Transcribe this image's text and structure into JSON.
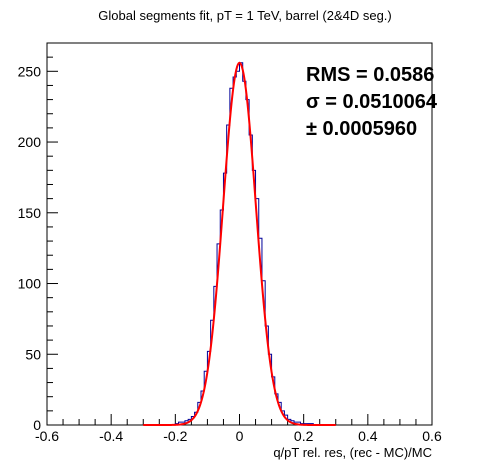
{
  "chart_data": {
    "type": "histogram",
    "title": "Global segments fit, pT = 1 TeV, barrel (2&4D seg.)",
    "xlabel": "q/pT rel. res, (rec - MC)/MC",
    "ylabel": "",
    "xlim": [
      -0.6,
      0.6
    ],
    "ylim": [
      0,
      270
    ],
    "x_ticks": [
      -0.6,
      -0.4,
      -0.2,
      0,
      0.2,
      0.4,
      0.6
    ],
    "x_tick_labels": [
      "-0.6",
      "-0.4",
      "-0.2",
      "0",
      "0.2",
      "0.4",
      "0.6"
    ],
    "y_ticks": [
      0,
      50,
      100,
      150,
      200,
      250
    ],
    "y_tick_labels": [
      "0",
      "50",
      "100",
      "150",
      "200",
      "250"
    ],
    "grid": false,
    "legend": "none",
    "histogram": {
      "name": "",
      "color": "#000099",
      "bin_edges": [
        -0.2,
        -0.19,
        -0.18,
        -0.17,
        -0.16,
        -0.15,
        -0.14,
        -0.13,
        -0.12,
        -0.11,
        -0.1,
        -0.09,
        -0.08,
        -0.07,
        -0.06,
        -0.05,
        -0.04,
        -0.03,
        -0.02,
        -0.01,
        0.0,
        0.01,
        0.02,
        0.03,
        0.04,
        0.05,
        0.06,
        0.07,
        0.08,
        0.09,
        0.1,
        0.11,
        0.12,
        0.13,
        0.14,
        0.15,
        0.16,
        0.17,
        0.18,
        0.19,
        0.2,
        0.21,
        0.22,
        0.23,
        0.24,
        0.25
      ],
      "counts": [
        1,
        2,
        2,
        3,
        4,
        6,
        9,
        16,
        24,
        38,
        52,
        74,
        98,
        128,
        152,
        178,
        212,
        238,
        246,
        250,
        256,
        243,
        230,
        205,
        180,
        160,
        132,
        102,
        70,
        50,
        34,
        22,
        16,
        10,
        7,
        4,
        3,
        2,
        2,
        1,
        1,
        1,
        1,
        0,
        0
      ]
    },
    "fit": {
      "type": "gaussian",
      "color": "#ff0000",
      "amplitude": 256,
      "mean": 0.0,
      "sigma": 0.0510064,
      "range": [
        -0.3,
        0.3
      ]
    },
    "stats": {
      "rms_text": "RMS = 0.0586",
      "sigma_text": "σ = 0.0510064",
      "error_text": "± 0.0005960"
    }
  }
}
